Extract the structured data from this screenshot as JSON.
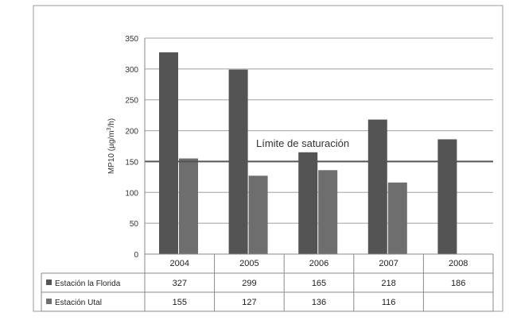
{
  "chart_data": {
    "type": "bar",
    "categories": [
      "2004",
      "2005",
      "2006",
      "2007",
      "2008"
    ],
    "series": [
      {
        "name": "Estación la Florida",
        "values": [
          327,
          299,
          165,
          218,
          186
        ],
        "color": "#545454"
      },
      {
        "name": "Estación Utal",
        "values": [
          155,
          127,
          136,
          116,
          null
        ],
        "color": "#6e6e6e"
      }
    ],
    "ylabel": "MP10 (µg/m",
    "ylabel_sup": "3",
    "ylabel_end": "/h)",
    "ylim": [
      0,
      350
    ],
    "yticks": [
      0,
      50,
      100,
      150,
      200,
      250,
      300,
      350
    ],
    "grid": true,
    "legend": "data-table",
    "reference_line": {
      "value": 150,
      "label": "Límite de saturación"
    },
    "table": {
      "rows": [
        {
          "series": "Estación la Florida",
          "cells": [
            "327",
            "299",
            "165",
            "218",
            "186"
          ]
        },
        {
          "series": "Estación Utal",
          "cells": [
            "155",
            "127",
            "136",
            "116",
            ""
          ]
        }
      ]
    }
  }
}
